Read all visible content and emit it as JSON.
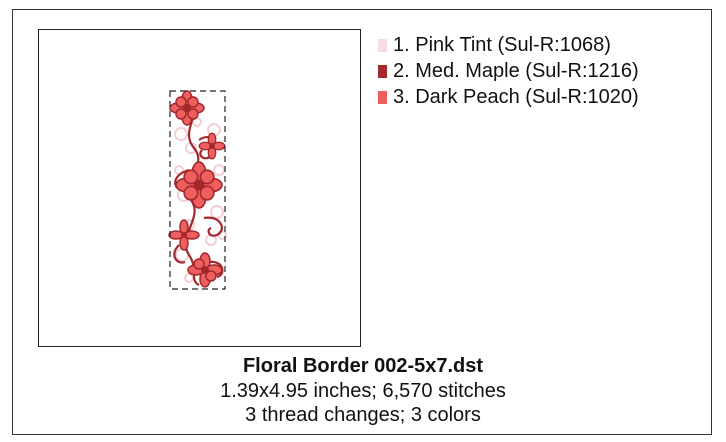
{
  "design": {
    "threads": [
      {
        "label": "1.  Pink Tint (Sul-R:1068)",
        "color": "#f6dde2"
      },
      {
        "label": "2.  Med. Maple (Sul-R:1216)",
        "color": "#a3282b"
      },
      {
        "label": "3.  Dark Peach (Sul-R:1020)",
        "color": "#f05f60"
      }
    ],
    "filename": "Floral Border 002-5x7.dst",
    "dimensions": "1.39x4.95 inches; 6,570 stitches",
    "changes": "3 thread changes; 3 colors"
  }
}
